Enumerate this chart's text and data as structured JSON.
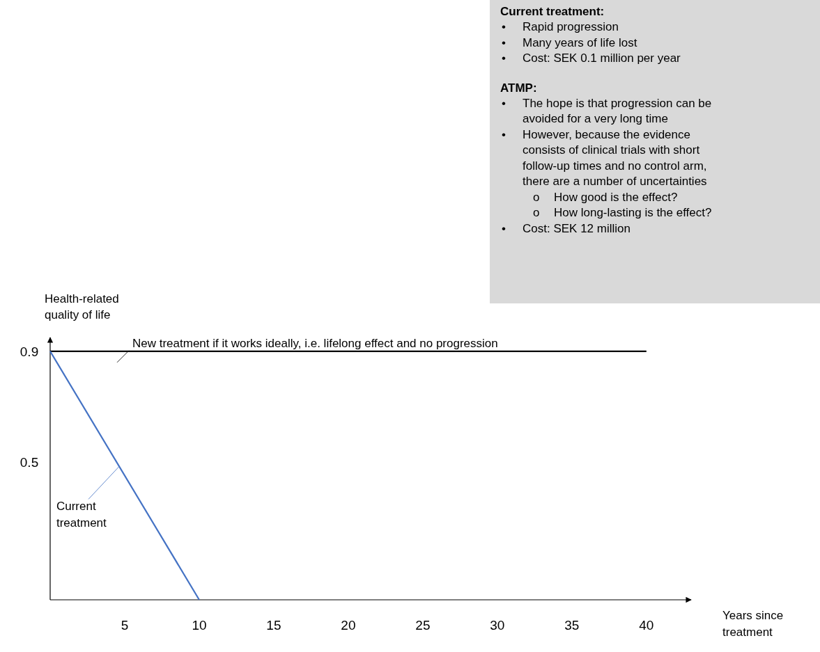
{
  "chart_data": {
    "type": "line",
    "xlabel": "Years since treatment",
    "ylabel": "Health-related quality of life",
    "xlim": [
      0,
      43
    ],
    "xticks": [
      5,
      10,
      15,
      20,
      25,
      30,
      35,
      40
    ],
    "ylim": [
      0,
      0.95
    ],
    "yticks": [
      0.5,
      0.9
    ],
    "grid": false,
    "marker": "none",
    "line_style": "solid",
    "series": [
      {
        "name": "New treatment if it works ideally, i.e. lifelong effect and no progression",
        "color": "#000000",
        "x": [
          0,
          40
        ],
        "values": [
          0.9,
          0.9
        ]
      },
      {
        "name": "Current treatment",
        "color": "#4472c4",
        "x": [
          0,
          10
        ],
        "values": [
          0.9,
          0
        ]
      }
    ],
    "annotations": [
      "Current treatment:",
      "•\tRapid progression",
      "•\tMany years of life lost",
      "•\tCost: SEK 0.1 million per year",
      "ATMP:",
      "•\tThe hope is that progression can be\navoided for a very long time",
      "•\tHowever, because the evidence\nconsists of clinical trials with short\nfollow-up times and no control arm,\nthere are a number of uncertainties",
      "o\tHow good is the effect?",
      "o\tHow long-lasting is the effect?",
      "•\tCost: SEK 12 million"
    ]
  }
}
